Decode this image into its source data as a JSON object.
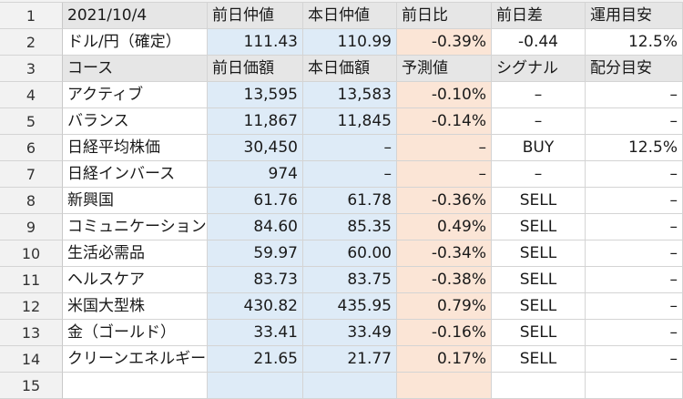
{
  "sheet": {
    "row_numbers": [
      "1",
      "2",
      "3",
      "4",
      "5",
      "6",
      "7",
      "8",
      "9",
      "10",
      "11",
      "12",
      "13",
      "14",
      "15"
    ],
    "rows": [
      [
        "2021/10/4",
        "前日仲値",
        "本日仲値",
        "前日比",
        "前日差",
        "運用目安"
      ],
      [
        "ドル/円（確定）",
        "111.43",
        "110.99",
        "-0.39%",
        "-0.44",
        "12.5%"
      ],
      [
        "コース",
        "前日価額",
        "本日価額",
        "予測値",
        "シグナル",
        "配分目安"
      ],
      [
        "アクティブ",
        "13,595",
        "13,583",
        "-0.10%",
        "–",
        "–"
      ],
      [
        "バランス",
        "11,867",
        "11,845",
        "-0.14%",
        "–",
        "–"
      ],
      [
        "日経平均株価",
        "30,450",
        "–",
        "–",
        "BUY",
        "12.5%"
      ],
      [
        "日経インバース",
        "974",
        "–",
        "–",
        "–",
        "–"
      ],
      [
        "新興国",
        "61.76",
        "61.78",
        "-0.36%",
        "SELL",
        "–"
      ],
      [
        "コミュニケーション",
        "84.60",
        "85.35",
        "0.49%",
        "SELL",
        "–"
      ],
      [
        "生活必需品",
        "59.97",
        "60.00",
        "-0.34%",
        "SELL",
        "–"
      ],
      [
        "ヘルスケア",
        "83.73",
        "83.75",
        "-0.38%",
        "SELL",
        "–"
      ],
      [
        "米国大型株",
        "430.82",
        "435.95",
        "0.79%",
        "SELL",
        "–"
      ],
      [
        "金（ゴールド）",
        "33.41",
        "33.49",
        "-0.16%",
        "SELL",
        "–"
      ],
      [
        "クリーンエネルギー",
        "21.65",
        "21.77",
        "0.17%",
        "SELL",
        "–"
      ],
      [
        "",
        "",
        "",
        "",
        "",
        ""
      ]
    ]
  },
  "colors": {
    "header_row": "#e6e6e6",
    "price_columns": "#deebf7",
    "forecast_column": "#fbe5d6",
    "row_header": "#f2f2f2"
  }
}
